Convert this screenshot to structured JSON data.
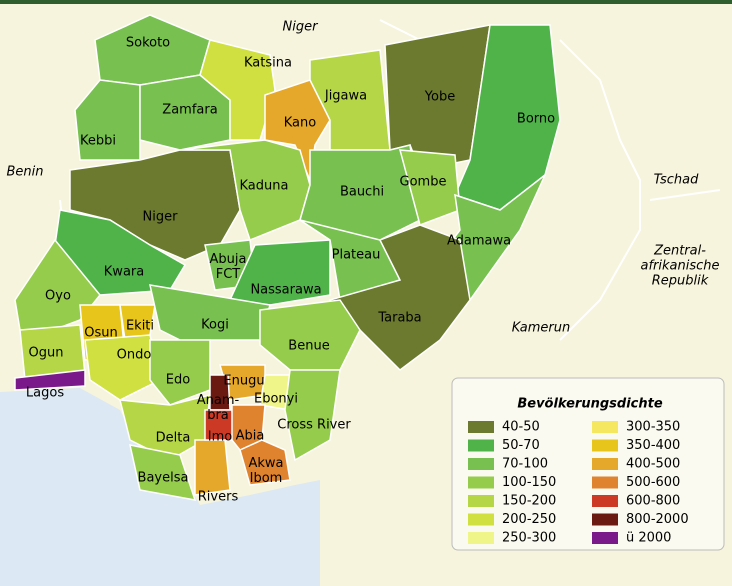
{
  "countries": [
    {
      "lines": [
        "Niger"
      ]
    },
    {
      "lines": [
        "Benin"
      ]
    },
    {
      "lines": [
        "Tschad"
      ]
    },
    {
      "lines": [
        "Zentral-",
        "afrikanische",
        "Republik"
      ]
    },
    {
      "lines": [
        "Kamerun"
      ]
    }
  ],
  "states": [
    {
      "lines": [
        "Sokoto"
      ],
      "color": "#78c050"
    },
    {
      "lines": [
        "Kebbi"
      ],
      "color": "#78c050"
    },
    {
      "lines": [
        "Zamfara"
      ],
      "color": "#78c050"
    },
    {
      "lines": [
        "Katsina"
      ],
      "color": "#cfe040"
    },
    {
      "lines": [
        "Kano"
      ],
      "color": "#e6a82a"
    },
    {
      "lines": [
        "Jigawa"
      ],
      "color": "#b5d646"
    },
    {
      "lines": [
        "Yobe"
      ],
      "color": "#6b7a2e"
    },
    {
      "lines": [
        "Borno"
      ],
      "color": "#4fb34a"
    },
    {
      "lines": [
        "Niger"
      ],
      "color": "#6b7a2e"
    },
    {
      "lines": [
        "Kaduna"
      ],
      "color": "#96cc4c"
    },
    {
      "lines": [
        "Bauchi"
      ],
      "color": "#78c050"
    },
    {
      "lines": [
        "Gombe"
      ],
      "color": "#96cc4c"
    },
    {
      "lines": [
        "Adamawa"
      ],
      "color": "#78c050"
    },
    {
      "lines": [
        "Kwara"
      ],
      "color": "#4fb34a"
    },
    {
      "lines": [
        "Abuja",
        "FCT"
      ],
      "color": "#78c050"
    },
    {
      "lines": [
        "Nassarawa"
      ],
      "color": "#4fb34a"
    },
    {
      "lines": [
        "Plateau"
      ],
      "color": "#78c050"
    },
    {
      "lines": [
        "Taraba"
      ],
      "color": "#6b7a2e"
    },
    {
      "lines": [
        "Oyo"
      ],
      "color": "#96cc4c"
    },
    {
      "lines": [
        "Osun"
      ],
      "color": "#e8c51a"
    },
    {
      "lines": [
        "Ekiti"
      ],
      "color": "#e8c51a"
    },
    {
      "lines": [
        "Kogi"
      ],
      "color": "#78c050"
    },
    {
      "lines": [
        "Benue"
      ],
      "color": "#96cc4c"
    },
    {
      "lines": [
        "Ogun"
      ],
      "color": "#b5d646"
    },
    {
      "lines": [
        "Ondo"
      ],
      "color": "#cfe040"
    },
    {
      "lines": [
        "Lagos"
      ],
      "color": "#7a1a8a"
    },
    {
      "lines": [
        "Edo"
      ],
      "color": "#96cc4c"
    },
    {
      "lines": [
        "Delta"
      ],
      "color": "#b5d646"
    },
    {
      "lines": [
        "Bayelsa"
      ],
      "color": "#96cc4c"
    },
    {
      "lines": [
        "Rivers"
      ],
      "color": "#e6a82a"
    },
    {
      "lines": [
        "Enugu"
      ],
      "color": "#e6a82a"
    },
    {
      "lines": [
        "Anam-",
        "bra"
      ],
      "color": "#6b1a12"
    },
    {
      "lines": [
        "Ebonyi"
      ],
      "color": "#f0f58a"
    },
    {
      "lines": [
        "Imo"
      ],
      "color": "#cc3a26"
    },
    {
      "lines": [
        "Abia"
      ],
      "color": "#e0832e"
    },
    {
      "lines": [
        "Akwa",
        "Ibom"
      ],
      "color": "#e0832e"
    },
    {
      "lines": [
        "Cross River"
      ],
      "color": "#96cc4c"
    }
  ],
  "legend": {
    "title": "Bevölkerungsdichte",
    "entries": [
      {
        "label": "40-50",
        "color": "#6b7a2e"
      },
      {
        "label": "50-70",
        "color": "#4fb34a"
      },
      {
        "label": "70-100",
        "color": "#78c050"
      },
      {
        "label": "100-150",
        "color": "#96cc4c"
      },
      {
        "label": "150-200",
        "color": "#b5d646"
      },
      {
        "label": "200-250",
        "color": "#cfe040"
      },
      {
        "label": "250-300",
        "color": "#f0f58a"
      },
      {
        "label": "300-350",
        "color": "#f5e860"
      },
      {
        "label": "350-400",
        "color": "#e8c51a"
      },
      {
        "label": "400-500",
        "color": "#e6a82a"
      },
      {
        "label": "500-600",
        "color": "#e0832e"
      },
      {
        "label": "600-800",
        "color": "#cc3a26"
      },
      {
        "label": "800-2000",
        "color": "#6b1a12"
      },
      {
        "label": "ü 2000",
        "color": "#7a1a8a"
      }
    ]
  }
}
